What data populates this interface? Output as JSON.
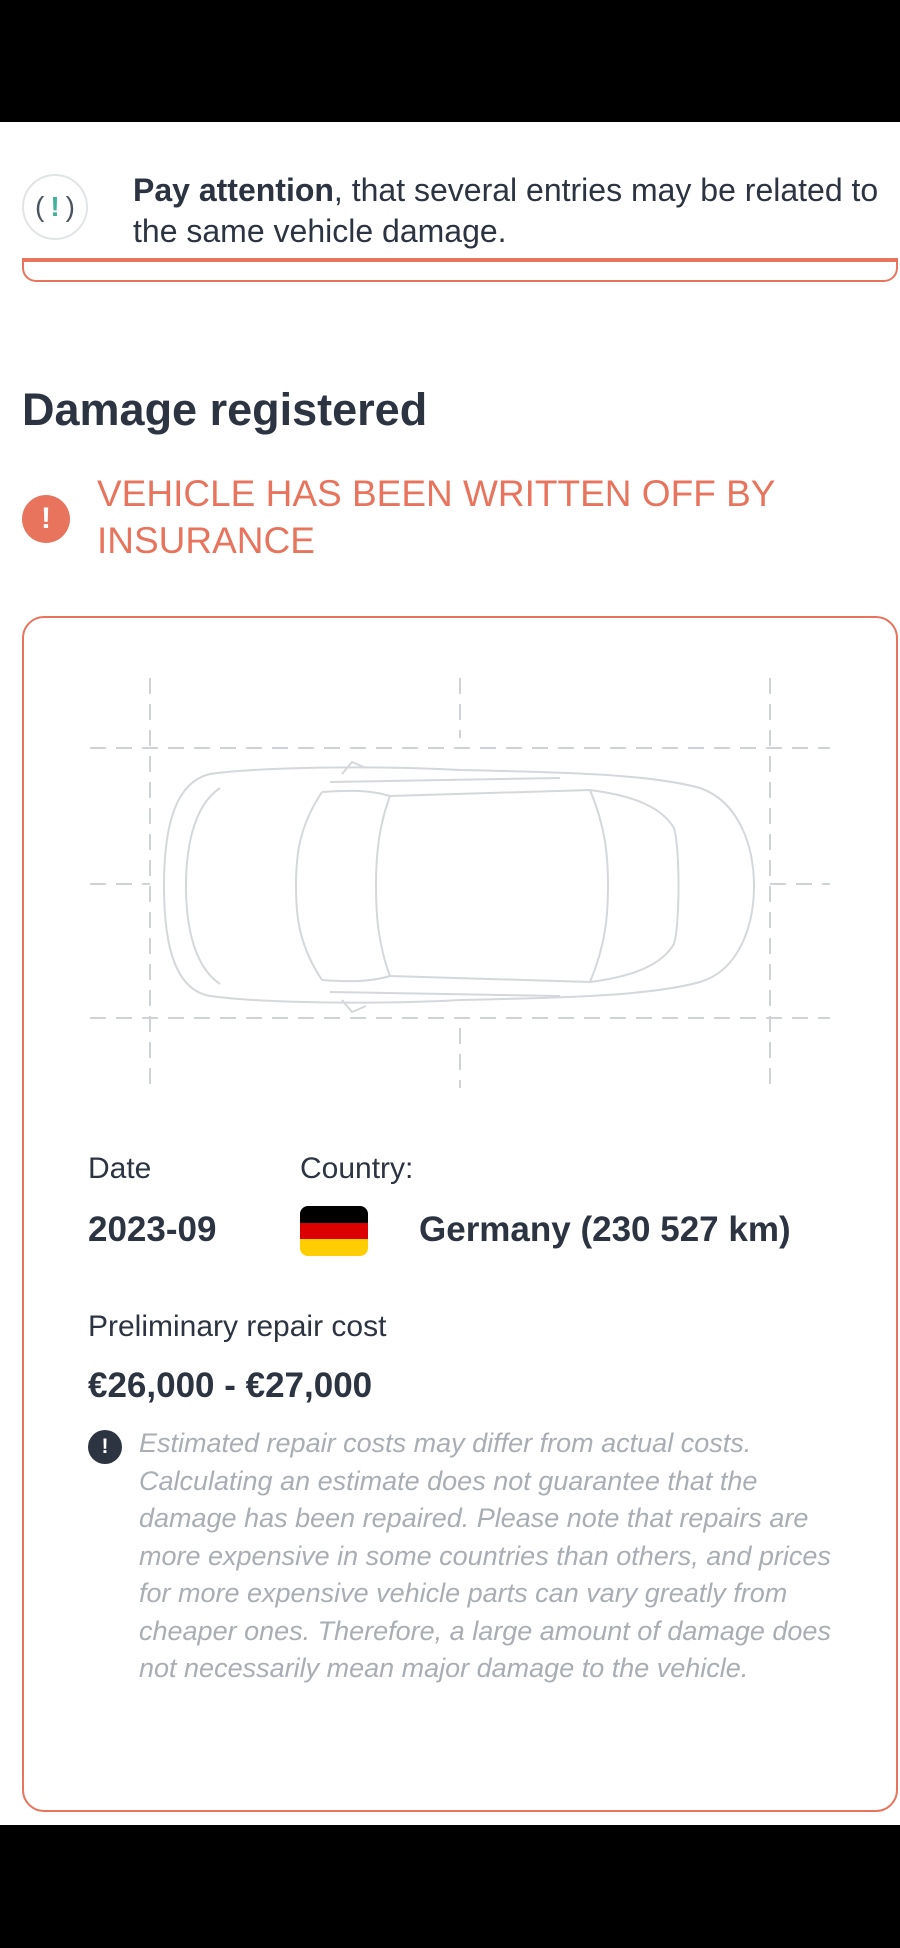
{
  "notice": {
    "bold": "Pay attention",
    "text": ", that several entries may be related to the same vehicle damage.",
    "icon": "exclamation-in-parentheses-icon"
  },
  "damage": {
    "section_title": "Damage registered",
    "alert": "VEHICLE HAS BEEN WRITTEN OFF BY INSURANCE",
    "date_label": "Date",
    "date_value": "2023-09",
    "country_label": "Country:",
    "country_value": "Germany (230 527 km)",
    "flag_colors": [
      "#000000",
      "#dd0000",
      "#ffce00"
    ],
    "repair_label": "Preliminary repair cost",
    "repair_value": "€26,000 - €27,000",
    "disclaimer": "Estimated repair costs may differ from actual costs. Calculating an estimate does not guarantee that the damage has been repaired. Please note that repairs are more expensive in some countries than others, and prices for more expensive vehicle parts can vary greatly from cheaper ones. Therefore, a large amount of damage does not necessarily mean major damage to the vehicle."
  },
  "colors": {
    "accent": "#e8745e",
    "text": "#2b3440",
    "muted": "#a9aeb4",
    "success": "#3fb39a"
  }
}
